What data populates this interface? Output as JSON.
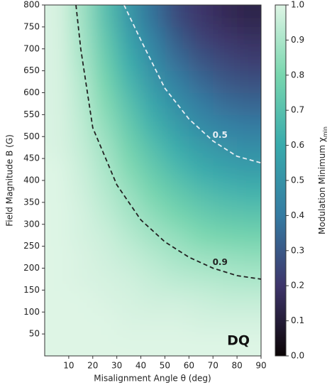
{
  "chart_data": {
    "type": "heatmap",
    "xlabel": "Misalignment Angle θ (deg)",
    "ylabel": "Field Magnitude B (G)",
    "annotation": "DQ",
    "colorbar_label": "Modulation Minimum χ",
    "colorbar_label_sub": "min",
    "colormap": "mako",
    "x": [
      5,
      15,
      25,
      35,
      45,
      55,
      65,
      75,
      85
    ],
    "y": [
      25,
      75,
      125,
      175,
      225,
      275,
      325,
      375,
      425,
      475,
      525,
      575,
      625,
      675,
      725,
      775
    ],
    "z": [
      [
        1,
        1,
        1,
        1,
        1,
        1,
        1,
        1,
        1
      ],
      [
        1,
        1,
        1,
        0.99,
        0.99,
        0.99,
        0.98,
        0.98,
        0.98
      ],
      [
        1,
        1,
        0.99,
        0.98,
        0.97,
        0.97,
        0.96,
        0.95,
        0.95
      ],
      [
        1,
        0.99,
        0.98,
        0.97,
        0.95,
        0.93,
        0.92,
        0.91,
        0.9
      ],
      [
        1,
        0.99,
        0.97,
        0.95,
        0.92,
        0.89,
        0.87,
        0.86,
        0.85
      ],
      [
        1,
        0.98,
        0.96,
        0.92,
        0.88,
        0.85,
        0.81,
        0.79,
        0.78
      ],
      [
        1,
        0.98,
        0.94,
        0.89,
        0.84,
        0.79,
        0.75,
        0.72,
        0.71
      ],
      [
        1,
        0.97,
        0.92,
        0.86,
        0.79,
        0.73,
        0.68,
        0.65,
        0.63
      ],
      [
        1,
        0.96,
        0.9,
        0.82,
        0.74,
        0.67,
        0.61,
        0.57,
        0.55
      ],
      [
        0.99,
        0.95,
        0.88,
        0.78,
        0.69,
        0.61,
        0.54,
        0.5,
        0.48
      ],
      [
        0.99,
        0.94,
        0.85,
        0.74,
        0.63,
        0.54,
        0.47,
        0.43,
        0.4
      ],
      [
        0.99,
        0.93,
        0.82,
        0.7,
        0.58,
        0.48,
        0.41,
        0.36,
        0.34
      ],
      [
        0.99,
        0.92,
        0.79,
        0.65,
        0.52,
        0.42,
        0.35,
        0.3,
        0.28
      ],
      [
        0.99,
        0.9,
        0.76,
        0.61,
        0.47,
        0.36,
        0.29,
        0.25,
        0.22
      ],
      [
        0.99,
        0.89,
        0.73,
        0.56,
        0.42,
        0.31,
        0.24,
        0.2,
        0.18
      ],
      [
        0.99,
        0.88,
        0.7,
        0.52,
        0.37,
        0.26,
        0.2,
        0.16,
        0.14
      ]
    ],
    "contours": [
      {
        "level": 0.9,
        "color": "#222222",
        "x": [
          13,
          15,
          20,
          30,
          40,
          50,
          60,
          70,
          80,
          90
        ],
        "y": [
          800,
          700,
          520,
          390,
          310,
          260,
          225,
          200,
          183,
          175
        ]
      },
      {
        "level": 0.5,
        "color": "#e8eef4",
        "x": [
          33,
          40,
          50,
          60,
          70,
          80,
          90
        ],
        "y": [
          800,
          720,
          610,
          540,
          490,
          455,
          440
        ]
      }
    ],
    "xlim": [
      0,
      90
    ],
    "xticks": [
      10,
      20,
      30,
      40,
      50,
      60,
      70,
      80,
      90
    ],
    "ylim": [
      0,
      800
    ],
    "yticks": [
      50,
      100,
      150,
      200,
      250,
      300,
      350,
      400,
      450,
      500,
      550,
      600,
      650,
      700,
      750,
      800
    ],
    "clim": [
      0,
      1
    ],
    "cticks": [
      {
        "value": 0,
        "label": "0.0"
      },
      0.1,
      0.2,
      0.3,
      0.4,
      0.5,
      0.6,
      0.7,
      0.8,
      0.9,
      {
        "value": 1,
        "label": "1.0"
      }
    ]
  }
}
